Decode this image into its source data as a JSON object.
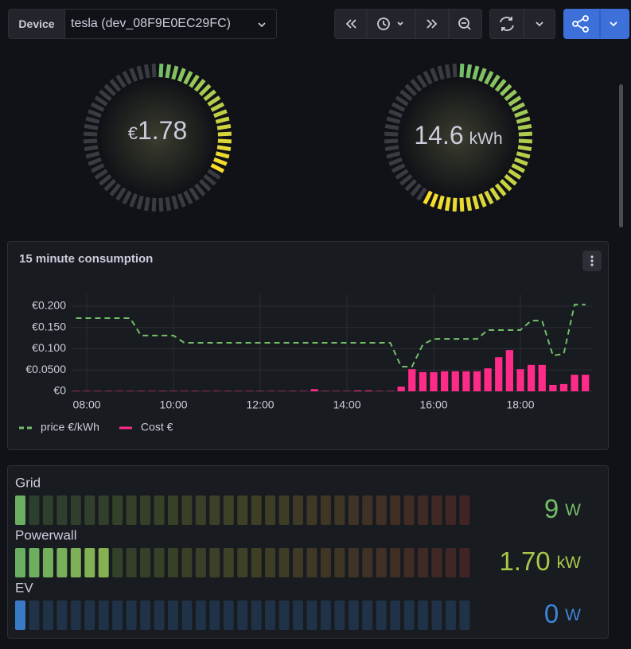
{
  "toolbar": {
    "variable_label": "Device",
    "variable_value": "tesla (dev_08F9E0EC29FC)"
  },
  "gauges": [
    {
      "prefix": "€",
      "value": 1.78
    },
    {
      "value": 14.6,
      "unit": "kWh"
    }
  ],
  "chart_data": {
    "type": "combo",
    "title": "15 minute consumption",
    "x": [
      7.75,
      8,
      8.25,
      8.5,
      8.75,
      9,
      9.25,
      9.5,
      9.75,
      10,
      10.25,
      10.5,
      10.75,
      11,
      11.25,
      11.5,
      11.75,
      12,
      12.25,
      12.5,
      12.75,
      13,
      13.25,
      13.5,
      13.75,
      14,
      14.25,
      14.5,
      14.75,
      15,
      15.25,
      15.5,
      15.75,
      16,
      16.25,
      16.5,
      16.75,
      17,
      17.25,
      17.5,
      17.75,
      18,
      18.25,
      18.5,
      18.75,
      19,
      19.25,
      19.5
    ],
    "xlim": [
      7.65,
      19.67
    ],
    "xticks": [
      {
        "value": 8,
        "label": "08:00"
      },
      {
        "value": 10,
        "label": "10:00"
      },
      {
        "value": 12,
        "label": "12:00"
      },
      {
        "value": 14,
        "label": "14:00"
      },
      {
        "value": 16,
        "label": "16:00"
      },
      {
        "value": 18,
        "label": "18:00"
      }
    ],
    "ylim": [
      0,
      0.228
    ],
    "yticks": [
      {
        "value": 0,
        "label": "€0"
      },
      {
        "value": 0.05,
        "label": "€0.0500"
      },
      {
        "value": 0.1,
        "label": "€0.100"
      },
      {
        "value": 0.15,
        "label": "€0.150"
      },
      {
        "value": 0.2,
        "label": "€0.200"
      }
    ],
    "grid": true,
    "legend": "bottom-left",
    "series": [
      {
        "name": "price €/kWh",
        "type": "line",
        "color": "#73bf69",
        "values": [
          0.172,
          0.172,
          0.172,
          0.172,
          0.172,
          0.172,
          0.131,
          0.131,
          0.131,
          0.131,
          0.114,
          0.114,
          0.114,
          0.114,
          0.114,
          0.114,
          0.114,
          0.114,
          0.114,
          0.114,
          0.114,
          0.114,
          0.114,
          0.114,
          0.114,
          0.114,
          0.114,
          0.114,
          0.114,
          0.114,
          0.058,
          0.058,
          0.11,
          0.123,
          0.123,
          0.123,
          0.123,
          0.123,
          0.144,
          0.144,
          0.144,
          0.144,
          0.166,
          0.166,
          0.084,
          0.088,
          0.204,
          0.204
        ]
      },
      {
        "name": "Cost €",
        "type": "bar",
        "color": "#ff2b88",
        "values": [
          0.001,
          0.001,
          0.001,
          0.001,
          0.001,
          0.001,
          0.001,
          0.001,
          0.001,
          0.001,
          0.001,
          0.001,
          0.001,
          0.001,
          0.001,
          0.001,
          0.001,
          0.001,
          0.001,
          0.001,
          0.001,
          0.001,
          0.005,
          0.001,
          0.001,
          0.001,
          0.002,
          0.002,
          0.001,
          0.001,
          0.011,
          0.052,
          0.045,
          0.045,
          0.047,
          0.047,
          0.047,
          0.047,
          0.054,
          0.08,
          0.097,
          0.052,
          0.062,
          0.062,
          0.015,
          0.017,
          0.039,
          0.039
        ]
      }
    ]
  },
  "bar_gauges": [
    {
      "name": "Grid",
      "value": 9,
      "unit": "W",
      "color": "#73bf69"
    },
    {
      "name": "Powerwall",
      "value": 1.7,
      "value_label": "1.70",
      "unit": "kW",
      "color": "#a9c94a"
    },
    {
      "name": "EV",
      "value": 0,
      "unit": "W",
      "color": "#3d85d8"
    }
  ]
}
